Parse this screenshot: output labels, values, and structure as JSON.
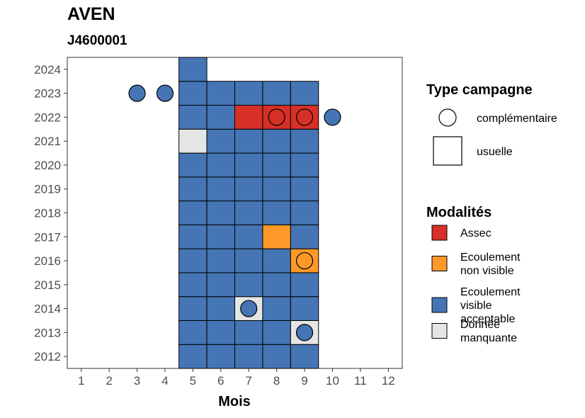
{
  "chart_data": {
    "type": "heatmap",
    "title": "AVEN",
    "subtitle": "J4600001",
    "xlabel": "Mois",
    "ylabel": "",
    "x_ticks": [
      1,
      2,
      3,
      4,
      5,
      6,
      7,
      8,
      9,
      10,
      11,
      12
    ],
    "y_ticks": [
      2012,
      2013,
      2014,
      2015,
      2016,
      2017,
      2018,
      2019,
      2020,
      2021,
      2022,
      2023,
      2024
    ],
    "xlim": [
      0.5,
      12.5
    ],
    "ylim": [
      2011.5,
      2024.5
    ],
    "grid": false,
    "colors": {
      "Assec": "#d73027",
      "Ecoulement non visible": "#fe9929",
      "Ecoulement visible acceptable": "#4575b4",
      "Donnée manquante": "#e5e5e5"
    },
    "tiles": [
      {
        "year": 2012,
        "month": 5,
        "modalite": "Ecoulement visible acceptable"
      },
      {
        "year": 2012,
        "month": 6,
        "modalite": "Ecoulement visible acceptable"
      },
      {
        "year": 2012,
        "month": 7,
        "modalite": "Ecoulement visible acceptable"
      },
      {
        "year": 2012,
        "month": 8,
        "modalite": "Ecoulement visible acceptable"
      },
      {
        "year": 2012,
        "month": 9,
        "modalite": "Ecoulement visible acceptable"
      },
      {
        "year": 2013,
        "month": 5,
        "modalite": "Ecoulement visible acceptable"
      },
      {
        "year": 2013,
        "month": 6,
        "modalite": "Ecoulement visible acceptable"
      },
      {
        "year": 2013,
        "month": 7,
        "modalite": "Ecoulement visible acceptable"
      },
      {
        "year": 2013,
        "month": 8,
        "modalite": "Ecoulement visible acceptable"
      },
      {
        "year": 2013,
        "month": 9,
        "modalite": "Donnée manquante"
      },
      {
        "year": 2014,
        "month": 5,
        "modalite": "Ecoulement visible acceptable"
      },
      {
        "year": 2014,
        "month": 6,
        "modalite": "Ecoulement visible acceptable"
      },
      {
        "year": 2014,
        "month": 7,
        "modalite": "Donnée manquante"
      },
      {
        "year": 2014,
        "month": 8,
        "modalite": "Ecoulement visible acceptable"
      },
      {
        "year": 2014,
        "month": 9,
        "modalite": "Ecoulement visible acceptable"
      },
      {
        "year": 2015,
        "month": 5,
        "modalite": "Ecoulement visible acceptable"
      },
      {
        "year": 2015,
        "month": 6,
        "modalite": "Ecoulement visible acceptable"
      },
      {
        "year": 2015,
        "month": 7,
        "modalite": "Ecoulement visible acceptable"
      },
      {
        "year": 2015,
        "month": 8,
        "modalite": "Ecoulement visible acceptable"
      },
      {
        "year": 2015,
        "month": 9,
        "modalite": "Ecoulement visible acceptable"
      },
      {
        "year": 2016,
        "month": 5,
        "modalite": "Ecoulement visible acceptable"
      },
      {
        "year": 2016,
        "month": 6,
        "modalite": "Ecoulement visible acceptable"
      },
      {
        "year": 2016,
        "month": 7,
        "modalite": "Ecoulement visible acceptable"
      },
      {
        "year": 2016,
        "month": 8,
        "modalite": "Ecoulement visible acceptable"
      },
      {
        "year": 2016,
        "month": 9,
        "modalite": "Ecoulement non visible"
      },
      {
        "year": 2017,
        "month": 5,
        "modalite": "Ecoulement visible acceptable"
      },
      {
        "year": 2017,
        "month": 6,
        "modalite": "Ecoulement visible acceptable"
      },
      {
        "year": 2017,
        "month": 7,
        "modalite": "Ecoulement visible acceptable"
      },
      {
        "year": 2017,
        "month": 8,
        "modalite": "Ecoulement non visible"
      },
      {
        "year": 2017,
        "month": 9,
        "modalite": "Ecoulement visible acceptable"
      },
      {
        "year": 2018,
        "month": 5,
        "modalite": "Ecoulement visible acceptable"
      },
      {
        "year": 2018,
        "month": 6,
        "modalite": "Ecoulement visible acceptable"
      },
      {
        "year": 2018,
        "month": 7,
        "modalite": "Ecoulement visible acceptable"
      },
      {
        "year": 2018,
        "month": 8,
        "modalite": "Ecoulement visible acceptable"
      },
      {
        "year": 2018,
        "month": 9,
        "modalite": "Ecoulement visible acceptable"
      },
      {
        "year": 2019,
        "month": 5,
        "modalite": "Ecoulement visible acceptable"
      },
      {
        "year": 2019,
        "month": 6,
        "modalite": "Ecoulement visible acceptable"
      },
      {
        "year": 2019,
        "month": 7,
        "modalite": "Ecoulement visible acceptable"
      },
      {
        "year": 2019,
        "month": 8,
        "modalite": "Ecoulement visible acceptable"
      },
      {
        "year": 2019,
        "month": 9,
        "modalite": "Ecoulement visible acceptable"
      },
      {
        "year": 2020,
        "month": 5,
        "modalite": "Ecoulement visible acceptable"
      },
      {
        "year": 2020,
        "month": 6,
        "modalite": "Ecoulement visible acceptable"
      },
      {
        "year": 2020,
        "month": 7,
        "modalite": "Ecoulement visible acceptable"
      },
      {
        "year": 2020,
        "month": 8,
        "modalite": "Ecoulement visible acceptable"
      },
      {
        "year": 2020,
        "month": 9,
        "modalite": "Ecoulement visible acceptable"
      },
      {
        "year": 2021,
        "month": 5,
        "modalite": "Donnée manquante"
      },
      {
        "year": 2021,
        "month": 6,
        "modalite": "Ecoulement visible acceptable"
      },
      {
        "year": 2021,
        "month": 7,
        "modalite": "Ecoulement visible acceptable"
      },
      {
        "year": 2021,
        "month": 8,
        "modalite": "Ecoulement visible acceptable"
      },
      {
        "year": 2021,
        "month": 9,
        "modalite": "Ecoulement visible acceptable"
      },
      {
        "year": 2022,
        "month": 5,
        "modalite": "Ecoulement visible acceptable"
      },
      {
        "year": 2022,
        "month": 6,
        "modalite": "Ecoulement visible acceptable"
      },
      {
        "year": 2022,
        "month": 7,
        "modalite": "Assec"
      },
      {
        "year": 2022,
        "month": 8,
        "modalite": "Assec"
      },
      {
        "year": 2022,
        "month": 9,
        "modalite": "Assec"
      },
      {
        "year": 2023,
        "month": 5,
        "modalite": "Ecoulement visible acceptable"
      },
      {
        "year": 2023,
        "month": 6,
        "modalite": "Ecoulement visible acceptable"
      },
      {
        "year": 2023,
        "month": 7,
        "modalite": "Ecoulement visible acceptable"
      },
      {
        "year": 2023,
        "month": 8,
        "modalite": "Ecoulement visible acceptable"
      },
      {
        "year": 2023,
        "month": 9,
        "modalite": "Ecoulement visible acceptable"
      },
      {
        "year": 2024,
        "month": 5,
        "modalite": "Ecoulement visible acceptable"
      }
    ],
    "points": [
      {
        "year": 2023,
        "month": 3,
        "modalite": "Ecoulement visible acceptable"
      },
      {
        "year": 2023,
        "month": 4,
        "modalite": "Ecoulement visible acceptable"
      },
      {
        "year": 2022,
        "month": 8,
        "modalite": "Assec"
      },
      {
        "year": 2022,
        "month": 9,
        "modalite": "Assec"
      },
      {
        "year": 2022,
        "month": 10,
        "modalite": "Ecoulement visible acceptable"
      },
      {
        "year": 2016,
        "month": 9,
        "modalite": "Ecoulement non visible"
      },
      {
        "year": 2014,
        "month": 7,
        "modalite": "Ecoulement visible acceptable"
      },
      {
        "year": 2013,
        "month": 9,
        "modalite": "Ecoulement visible acceptable"
      }
    ]
  },
  "legend": {
    "type_title": "Type campagne",
    "type_items": [
      "complémentaire",
      "usuelle"
    ],
    "modalite_title": "Modalités",
    "modalite_items": [
      {
        "key": "Assec",
        "lines": [
          "Assec"
        ]
      },
      {
        "key": "Ecoulement non visible",
        "lines": [
          "Ecoulement",
          "non visible"
        ]
      },
      {
        "key": "Ecoulement visible acceptable",
        "lines": [
          "Ecoulement",
          "visible",
          "acceptable"
        ]
      },
      {
        "key": "Donnée manquante",
        "lines": [
          "Donnée",
          "manquante"
        ]
      }
    ]
  }
}
